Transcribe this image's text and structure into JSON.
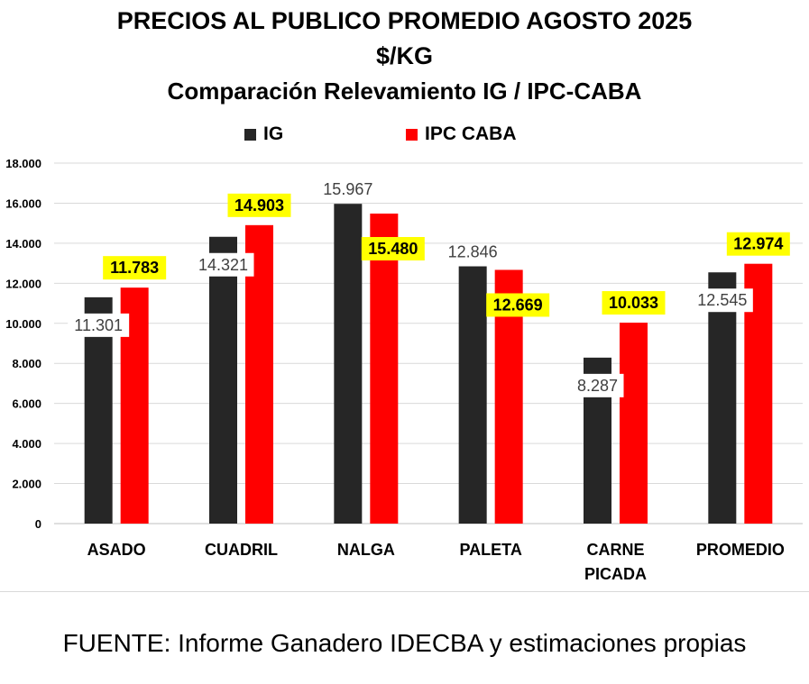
{
  "title_line1": "PRECIOS AL PUBLICO PROMEDIO AGOSTO 2025",
  "title_line2": "$/KG",
  "title_line3": "Comparación Relevamiento IG / IPC-CABA",
  "source": "FUENTE: Informe Ganadero IDECBA y estimaciones propias",
  "colors": {
    "ig": "#262626",
    "ipc": "#ff0000",
    "label_highlight": "#ffff00",
    "gridline": "#d9d9d9"
  },
  "chart_data": {
    "type": "bar",
    "categories": [
      [
        "ASADO"
      ],
      [
        "CUADRIL"
      ],
      [
        "NALGA"
      ],
      [
        "PALETA"
      ],
      [
        "CARNE",
        "PICADA"
      ],
      [
        "PROMEDIO"
      ]
    ],
    "series": [
      {
        "name": "IG",
        "values": [
          11301,
          14321,
          15967,
          12846,
          8287,
          12545
        ],
        "labels": [
          "11.301",
          "14.321",
          "15.967",
          "12.846",
          "8.287",
          "12.545"
        ]
      },
      {
        "name": "IPC CABA",
        "values": [
          11783,
          14903,
          15480,
          12669,
          10033,
          12974
        ],
        "labels": [
          "11.783",
          "14.903",
          "15.480",
          "12.669",
          "10.033",
          "12.974"
        ]
      }
    ],
    "yticks": [
      "0",
      "2.000",
      "4.000",
      "6.000",
      "8.000",
      "10.000",
      "12.000",
      "14.000",
      "16.000",
      "18.000"
    ],
    "ylim": [
      0,
      18000
    ],
    "ystep": 2000,
    "grid": true,
    "legend_position": "top-center"
  }
}
